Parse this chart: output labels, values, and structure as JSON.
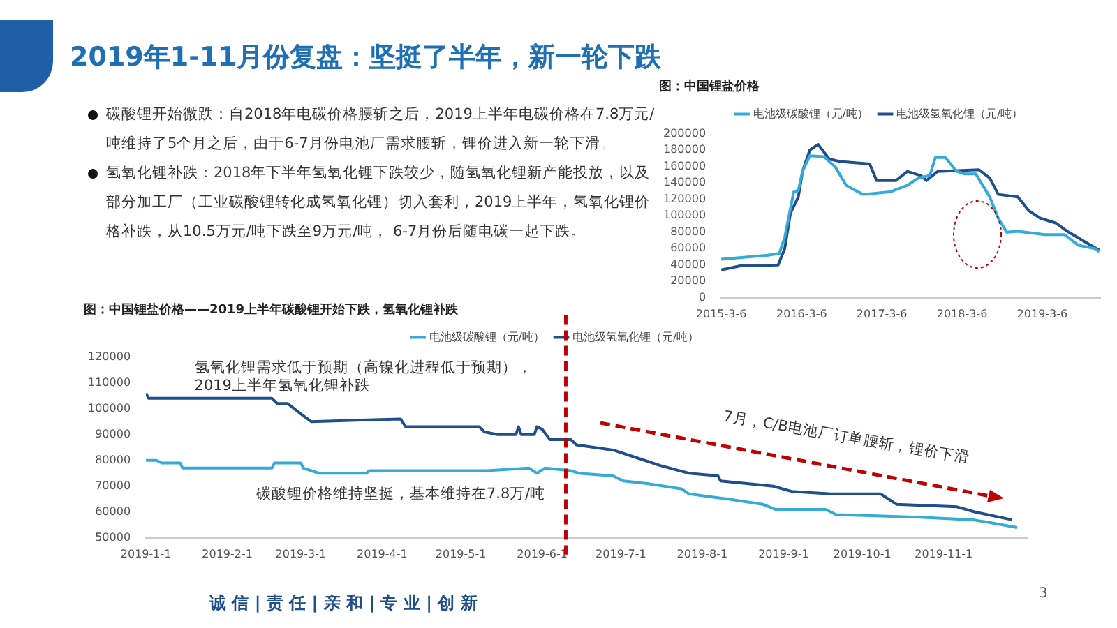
{
  "chart_data": [
    {
      "type": "other",
      "title": "2019年1-11月份复盘：坚挺了半年，新一轮下跌",
      "annotations": [
        "碳酸锂开始微跌：自2018年电碳价格腰斩之后，2019上半年电碳价格在7.8万元/吨维持了5个月之后，由于6-7月份电池厂需求腰斩，锂价进入新一轮下滑。",
        "氢氧化锂补跌：2018年下半年氢氧化锂下跌较少，随氢氧化锂新产能投放，以及部分加工厂（工业碳酸锂转化成氢氧化锂）切入套利，2019上半年，氢氧化锂价格补跌，从10.5万元/吨下跌至9万元/吨， 6-7月份后随电碳一起下跌。",
        "诚 信 | 责 任 | 亲 和 | 专 业 | 创 新",
        "3"
      ]
    },
    {
      "type": "line",
      "title": "图：中国锂盐价格",
      "legend": "top",
      "xlim": [
        "2015-03-06",
        "2019-11-25"
      ],
      "ylim": [
        0,
        200000
      ],
      "xticks": [
        {
          "value": "2015-03-06",
          "label": "2015-3-6"
        },
        {
          "value": "2016-03-06",
          "label": "2016-3-6"
        },
        {
          "value": "2017-03-06",
          "label": "2017-3-6"
        },
        {
          "value": "2018-03-06",
          "label": "2018-3-6"
        },
        {
          "value": "2019-03-06",
          "label": "2019-3-6"
        }
      ],
      "yticks": [
        0,
        20000,
        40000,
        60000,
        80000,
        100000,
        120000,
        140000,
        160000,
        180000,
        200000
      ],
      "series": [
        {
          "name": "电池级碳酸锂（元/吨）",
          "color": "#35aad8",
          "x": [
            "2015-03-06",
            "2015-10-05",
            "2015-11-25",
            "2015-12-20",
            "2016-01-30",
            "2016-02-20",
            "2016-03-10",
            "2016-04-12",
            "2016-06-15",
            "2016-08-05",
            "2016-09-25",
            "2016-12-10",
            "2017-04-12",
            "2017-06-30",
            "2017-08-20",
            "2017-10-10",
            "2017-11-05",
            "2017-12-20",
            "2018-02-10",
            "2018-03-18",
            "2018-05-08",
            "2018-07-10",
            "2018-08-18",
            "2018-09-25",
            "2018-11-15",
            "2019-03-18",
            "2019-06-15",
            "2019-08-18",
            "2019-11-01",
            "2019-11-20"
          ],
          "values": [
            47000,
            52000,
            54000,
            74000,
            129000,
            131000,
            154000,
            173000,
            172000,
            160000,
            137000,
            126000,
            129000,
            137000,
            146000,
            149000,
            171000,
            171000,
            154000,
            151000,
            151000,
            123000,
            97000,
            80000,
            81000,
            77000,
            77000,
            64000,
            60000,
            56000
          ]
        },
        {
          "name": "电池级氢氧化锂（元/吨）",
          "color": "#1f4e8c",
          "x": [
            "2015-03-06",
            "2015-06-01",
            "2015-11-20",
            "2015-12-20",
            "2016-01-15",
            "2016-02-20",
            "2016-03-10",
            "2016-04-12",
            "2016-05-20",
            "2016-07-10",
            "2016-08-30",
            "2017-01-10",
            "2017-02-10",
            "2017-05-10",
            "2017-06-30",
            "2017-08-30",
            "2017-09-25",
            "2017-11-15",
            "2018-05-22",
            "2018-07-10",
            "2018-08-18",
            "2018-11-15",
            "2019-01-05",
            "2019-02-25",
            "2019-05-08",
            "2019-06-28",
            "2019-09-12",
            "2019-11-20"
          ],
          "values": [
            34000,
            39000,
            40000,
            60000,
            103000,
            123000,
            154000,
            180000,
            187000,
            169000,
            166000,
            163000,
            143000,
            143000,
            154000,
            149000,
            143000,
            154000,
            156000,
            146000,
            126000,
            123000,
            106000,
            97000,
            91000,
            81000,
            69000,
            58000
          ]
        }
      ]
    },
    {
      "type": "line",
      "title": "图：中国锂盐价格——2019上半年碳酸锂开始下跌，氢氧化锂补跌",
      "legend": "top",
      "xlim": [
        "2019-01-01",
        "2019-12-03"
      ],
      "ylim": [
        50000,
        120000
      ],
      "xticks": [
        {
          "value": "2019-01-01",
          "label": "2019-1-1"
        },
        {
          "value": "2019-02-01",
          "label": "2019-2-1"
        },
        {
          "value": "2019-03-01",
          "label": "2019-3-1"
        },
        {
          "value": "2019-04-01",
          "label": "2019-4-1"
        },
        {
          "value": "2019-05-01",
          "label": "2019-5-1"
        },
        {
          "value": "2019-06-01",
          "label": "2019-6-1"
        },
        {
          "value": "2019-07-01",
          "label": "2019-7-1"
        },
        {
          "value": "2019-08-01",
          "label": "2019-8-1"
        },
        {
          "value": "2019-09-01",
          "label": "2019-9-1"
        },
        {
          "value": "2019-10-01",
          "label": "2019-10-1"
        },
        {
          "value": "2019-11-01",
          "label": "2019-11-1"
        }
      ],
      "yticks": [
        50000,
        60000,
        70000,
        80000,
        90000,
        100000,
        110000,
        120000
      ],
      "ref_lines": [
        {
          "axis": "x",
          "value": "2019-06-10",
          "color": "#c00000",
          "line_style": "dashed"
        }
      ],
      "annotations": [
        "氢氧化锂需求低于预期（高镍化进程低于预期），\n2019上半年氢氧化锂补跌",
        "碳酸锂价格维持坚挺，基本维持在7.8万/吨",
        "7月，C/B电池厂订单腰斩，锂价下滑"
      ],
      "series": [
        {
          "name": "电池级碳酸锂（元/吨）",
          "color": "#35aad8",
          "x": [
            "2019-01-01",
            "2019-01-05",
            "2019-01-07",
            "2019-01-14",
            "2019-01-15",
            "2019-02-18",
            "2019-02-19",
            "2019-03-01",
            "2019-03-02",
            "2019-03-08",
            "2019-03-26",
            "2019-03-27",
            "2019-05-11",
            "2019-05-27",
            "2019-05-30",
            "2019-06-02",
            "2019-06-12",
            "2019-06-15",
            "2019-06-28",
            "2019-07-02",
            "2019-07-11",
            "2019-07-24",
            "2019-07-27",
            "2019-08-11",
            "2019-08-24",
            "2019-08-29",
            "2019-09-17",
            "2019-09-21",
            "2019-10-23",
            "2019-11-12",
            "2019-11-18",
            "2019-11-29"
          ],
          "values": [
            80000,
            80000,
            79000,
            79000,
            77000,
            77000,
            79000,
            79000,
            77000,
            75000,
            75000,
            76000,
            76000,
            77000,
            75000,
            77000,
            76000,
            75000,
            74000,
            72000,
            71000,
            69000,
            67000,
            65000,
            63000,
            61000,
            61000,
            59000,
            58000,
            57000,
            56000,
            54000
          ]
        },
        {
          "name": "电池级氢氧化锂（元/吨）",
          "color": "#1f4e8c",
          "x": [
            "2019-01-01",
            "2019-01-02",
            "2019-02-18",
            "2019-02-20",
            "2019-02-24",
            "2019-03-01",
            "2019-03-05",
            "2019-04-08",
            "2019-04-10",
            "2019-05-08",
            "2019-05-10",
            "2019-05-15",
            "2019-05-22",
            "2019-05-23",
            "2019-05-24",
            "2019-05-29",
            "2019-05-30",
            "2019-06-01",
            "2019-06-04",
            "2019-06-12",
            "2019-06-14",
            "2019-06-28",
            "2019-07-07",
            "2019-07-16",
            "2019-07-27",
            "2019-08-07",
            "2019-08-08",
            "2019-08-28",
            "2019-09-04",
            "2019-09-19",
            "2019-10-08",
            "2019-10-14",
            "2019-11-06",
            "2019-11-13",
            "2019-11-27"
          ],
          "values": [
            106000,
            104000,
            104000,
            102000,
            102000,
            98000,
            95000,
            96000,
            93000,
            93000,
            91000,
            90000,
            90000,
            93000,
            90000,
            90000,
            93000,
            92000,
            88000,
            88000,
            86000,
            84000,
            81000,
            78000,
            75000,
            74000,
            72000,
            70000,
            68000,
            67000,
            67000,
            63000,
            62000,
            60000,
            57000
          ]
        }
      ]
    }
  ]
}
